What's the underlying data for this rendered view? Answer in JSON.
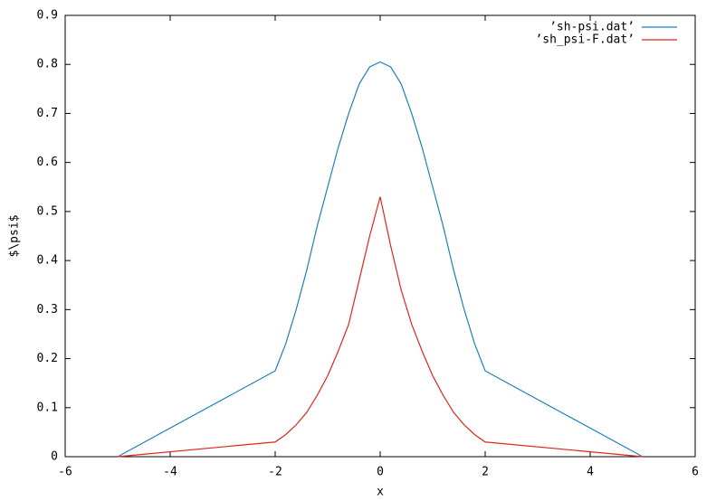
{
  "chart_data": {
    "type": "line",
    "x_label": "x",
    "y_label": "$\\psi$",
    "x": [
      -5,
      -2,
      -1.8,
      -1.6,
      -1.4,
      -1.2,
      -1,
      -0.8,
      -0.6,
      -0.4,
      -0.2,
      0,
      0.2,
      0.4,
      0.6,
      0.8,
      1,
      1.2,
      1.4,
      1.6,
      1.8,
      2,
      5
    ],
    "series": [
      {
        "name": "’sh-psi.dat’",
        "color": "#1f7fc0",
        "values": [
          0,
          0.175,
          0.23,
          0.3,
          0.38,
          0.47,
          0.55,
          0.63,
          0.7,
          0.76,
          0.795,
          0.805,
          0.795,
          0.76,
          0.7,
          0.63,
          0.55,
          0.47,
          0.38,
          0.3,
          0.23,
          0.175,
          0
        ]
      },
      {
        "name": "’sh_psi-F.dat’",
        "color": "#e0261c",
        "values": [
          0,
          0.03,
          0.045,
          0.065,
          0.09,
          0.125,
          0.165,
          0.215,
          0.27,
          0.36,
          0.45,
          0.53,
          0.43,
          0.34,
          0.27,
          0.215,
          0.165,
          0.125,
          0.09,
          0.065,
          0.045,
          0.03,
          0
        ]
      }
    ],
    "xlim": [
      -6,
      6
    ],
    "xticks": [
      -6,
      -4,
      -2,
      0,
      2,
      4,
      6
    ],
    "ylim": [
      0,
      0.9
    ],
    "yticks": [
      0,
      0.1,
      0.2,
      0.3,
      0.4,
      0.5,
      0.6,
      0.7,
      0.8,
      0.9
    ],
    "legend": "top-right",
    "grid": false
  }
}
